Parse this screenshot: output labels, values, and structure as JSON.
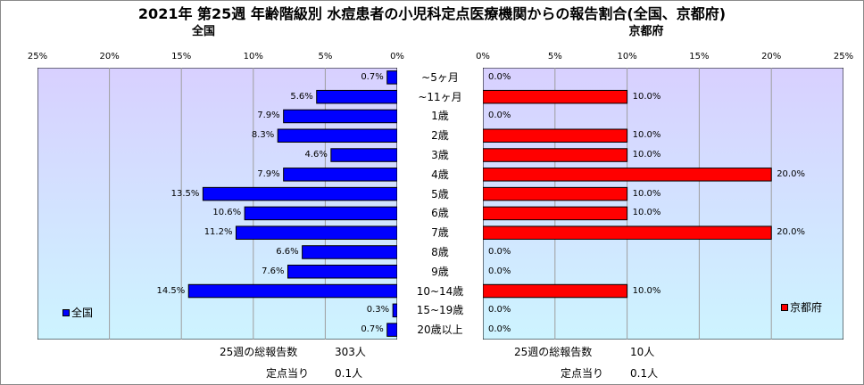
{
  "title": "2021年 第25週 年齢階級別 水痘患者の小児科定点医療機関からの報告割合(全国、京都府)",
  "chart_data": [
    {
      "type": "bar",
      "orientation": "horizontal",
      "title": "全国",
      "categories": [
        "~5ヶ月",
        "~11ヶ月",
        "1歳",
        "2歳",
        "3歳",
        "4歳",
        "5歳",
        "6歳",
        "7歳",
        "8歳",
        "9歳",
        "10~14歳",
        "15~19歳",
        "20歳以上"
      ],
      "series": [
        {
          "name": "全国",
          "values": [
            0.7,
            5.6,
            7.9,
            8.3,
            4.6,
            7.9,
            13.5,
            10.6,
            11.2,
            6.6,
            7.6,
            14.5,
            0.3,
            0.7
          ]
        }
      ],
      "value_labels": [
        "0.7%",
        "5.6%",
        "7.9%",
        "8.3%",
        "4.6%",
        "7.9%",
        "13.5%",
        "10.6%",
        "11.2%",
        "6.6%",
        "7.6%",
        "14.5%",
        "0.3%",
        "0.7%"
      ],
      "xlim": [
        0,
        25
      ],
      "x_reversed": true,
      "xticks": [
        "25%",
        "20%",
        "15%",
        "10%",
        "5%",
        "0%"
      ],
      "legend_position": "bottom-left",
      "color": "#0000ff",
      "footer": {
        "total_label": "25週の総報告数",
        "total_value": "303人",
        "per_label": "定点当り",
        "per_value": "0.1人"
      }
    },
    {
      "type": "bar",
      "orientation": "horizontal",
      "title": "京都府",
      "categories": [
        "~5ヶ月",
        "~11ヶ月",
        "1歳",
        "2歳",
        "3歳",
        "4歳",
        "5歳",
        "6歳",
        "7歳",
        "8歳",
        "9歳",
        "10~14歳",
        "15~19歳",
        "20歳以上"
      ],
      "series": [
        {
          "name": "京都府",
          "values": [
            0,
            10,
            0,
            10,
            10,
            20,
            10,
            10,
            20,
            0,
            0,
            10,
            0,
            0
          ]
        }
      ],
      "value_labels": [
        "0.0%",
        "10.0%",
        "0.0%",
        "10.0%",
        "10.0%",
        "20.0%",
        "10.0%",
        "10.0%",
        "20.0%",
        "0.0%",
        "0.0%",
        "10.0%",
        "0.0%",
        "0.0%"
      ],
      "xlim": [
        0,
        25
      ],
      "x_reversed": false,
      "xticks": [
        "0%",
        "5%",
        "10%",
        "15%",
        "20%",
        "25%"
      ],
      "legend_position": "bottom-right",
      "color": "#ff0000",
      "footer": {
        "total_label": "25週の総報告数",
        "total_value": "10人",
        "per_label": "定点当り",
        "per_value": "0.1人"
      }
    }
  ],
  "categories_display": [
    "~5ヶ月",
    "~11ヶ月",
    "1歳",
    "2歳",
    "3歳",
    "4歳",
    "5歳",
    "6歳",
    "7歳",
    "8歳",
    "9歳",
    "10~14歳",
    "15~19歳",
    "20歳以上"
  ]
}
